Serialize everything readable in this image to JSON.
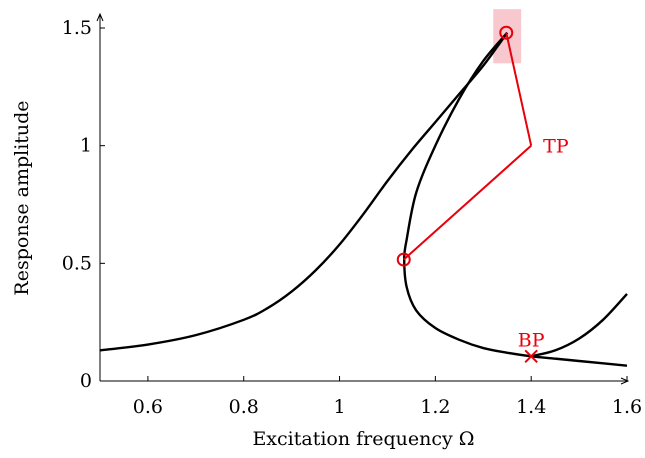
{
  "chart_data": {
    "type": "line",
    "title": "",
    "xlabel": "Excitation frequency Ω",
    "ylabel": "Response amplitude",
    "xlim": [
      0.5,
      1.6
    ],
    "ylim": [
      0,
      1.5
    ],
    "grid": false,
    "legend": "none",
    "x_ticks": [
      0.6,
      0.8,
      1.0,
      1.2,
      1.4,
      1.6
    ],
    "x_tick_labels": [
      "0.6",
      "0.8",
      "1",
      "1.2",
      "1.4",
      "1.6"
    ],
    "y_ticks": [
      0,
      0.5,
      1.0,
      1.5
    ],
    "y_tick_labels": [
      "0",
      "0.5",
      "1",
      "1.5"
    ],
    "series": [
      {
        "color": "#000000",
        "x": [
          0.5,
          0.6,
          0.7,
          0.8,
          0.85,
          0.9,
          0.95,
          1.0,
          1.05,
          1.1,
          1.15,
          1.2,
          1.25,
          1.3,
          1.35
        ],
        "y": [
          0.13,
          0.155,
          0.195,
          0.26,
          0.31,
          0.38,
          0.47,
          0.58,
          0.71,
          0.85,
          0.98,
          1.1,
          1.22,
          1.34,
          1.48
        ]
      },
      {
        "color": "#000000",
        "x": [
          1.35,
          1.3,
          1.25,
          1.2,
          1.16,
          1.14,
          1.135,
          1.14,
          1.16,
          1.2,
          1.25,
          1.3,
          1.35,
          1.4,
          1.45,
          1.5,
          1.55,
          1.6
        ],
        "y": [
          1.48,
          1.36,
          1.2,
          1.0,
          0.8,
          0.6,
          0.52,
          0.4,
          0.3,
          0.225,
          0.175,
          0.14,
          0.12,
          0.105,
          0.095,
          0.085,
          0.075,
          0.065
        ]
      },
      {
        "color": "#000000",
        "x": [
          1.4,
          1.45,
          1.5,
          1.55,
          1.6
        ],
        "y": [
          0.105,
          0.13,
          0.18,
          0.26,
          0.37
        ]
      }
    ],
    "markers": [
      {
        "kind": "circle",
        "x": 1.348,
        "y": 1.48,
        "color": "#e8000b"
      },
      {
        "kind": "circle",
        "x": 1.134,
        "y": 0.516,
        "color": "#e8000b"
      },
      {
        "kind": "cross",
        "x": 1.4,
        "y": 0.105,
        "color": "#e8000b"
      }
    ],
    "highlight_box": {
      "x": [
        1.3,
        1.4
      ],
      "y": [
        1.35,
        1.58
      ],
      "color": "#f7c9cf"
    },
    "annotations": [
      {
        "label": "TP",
        "x": 1.4,
        "y": 1.0,
        "color": "#e8000b",
        "connects": [
          [
            1.348,
            1.48
          ],
          [
            1.134,
            0.516
          ]
        ]
      },
      {
        "label": "BP",
        "x": 1.4,
        "y": 0.105,
        "color": "#e8000b"
      }
    ]
  }
}
